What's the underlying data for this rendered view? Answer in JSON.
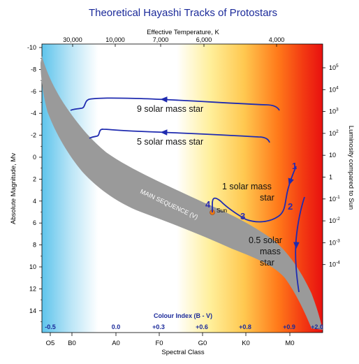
{
  "title": "Theoretical Hayashi Tracks of Protostars",
  "top_axis": {
    "label": "Effective Temperature, K",
    "ticks": [
      "30,000",
      "10,000",
      "7,000",
      "6,000",
      "4,000"
    ]
  },
  "left_axis": {
    "label": "Absolute Magnitude, Mv",
    "ticks": [
      "-10",
      "-8",
      "-6",
      "-4",
      "-2",
      "0",
      "2",
      "4",
      "6",
      "8",
      "10",
      "12",
      "14"
    ],
    "range": [
      -10.5,
      15.5
    ],
    "inverted": true
  },
  "right_axis": {
    "label": "Luminosity compared to Sun",
    "ticks": [
      {
        "base": "10",
        "exp": "5"
      },
      {
        "base": "10",
        "exp": "4"
      },
      {
        "base": "10",
        "exp": "3"
      },
      {
        "base": "10",
        "exp": "2"
      },
      {
        "base": "10",
        "exp": ""
      },
      {
        "base": "1",
        "exp": ""
      },
      {
        "base": "10",
        "exp": "-1"
      },
      {
        "base": "10",
        "exp": "-2"
      },
      {
        "base": "10",
        "exp": "-3"
      },
      {
        "base": "10",
        "exp": "-4"
      }
    ]
  },
  "bottom_axis": {
    "label": "Spectral Class",
    "ticks": [
      "O5",
      "B0",
      "A0",
      "F0",
      "G0",
      "K0",
      "M0"
    ]
  },
  "colour_index": {
    "label": "Colour Index (B - V)",
    "ticks": [
      "-0.5",
      "0.0",
      "+0.3",
      "+0.6",
      "+0.8",
      "+0.9",
      "+2.0"
    ]
  },
  "main_sequence": {
    "label": "MAIN SEQUENCE (V)"
  },
  "sun": {
    "label": "Sun",
    "magnitude": 4.8,
    "spectral_class": "G2"
  },
  "tracks": [
    {
      "label": "9 solar mass star"
    },
    {
      "label": "5 solar mass star"
    },
    {
      "label_line1": "1 solar mass",
      "label_line2": "star"
    },
    {
      "label_line1": "0.5 solar",
      "label_line2": "mass",
      "label_line3": "star"
    }
  ],
  "stages": [
    "1",
    "2",
    "3",
    "4"
  ],
  "colors": {
    "track": "#1f2bb0",
    "main_sequence": "#9a9a9a",
    "title": "#1b2a9a",
    "sun": "#e87a1a"
  }
}
